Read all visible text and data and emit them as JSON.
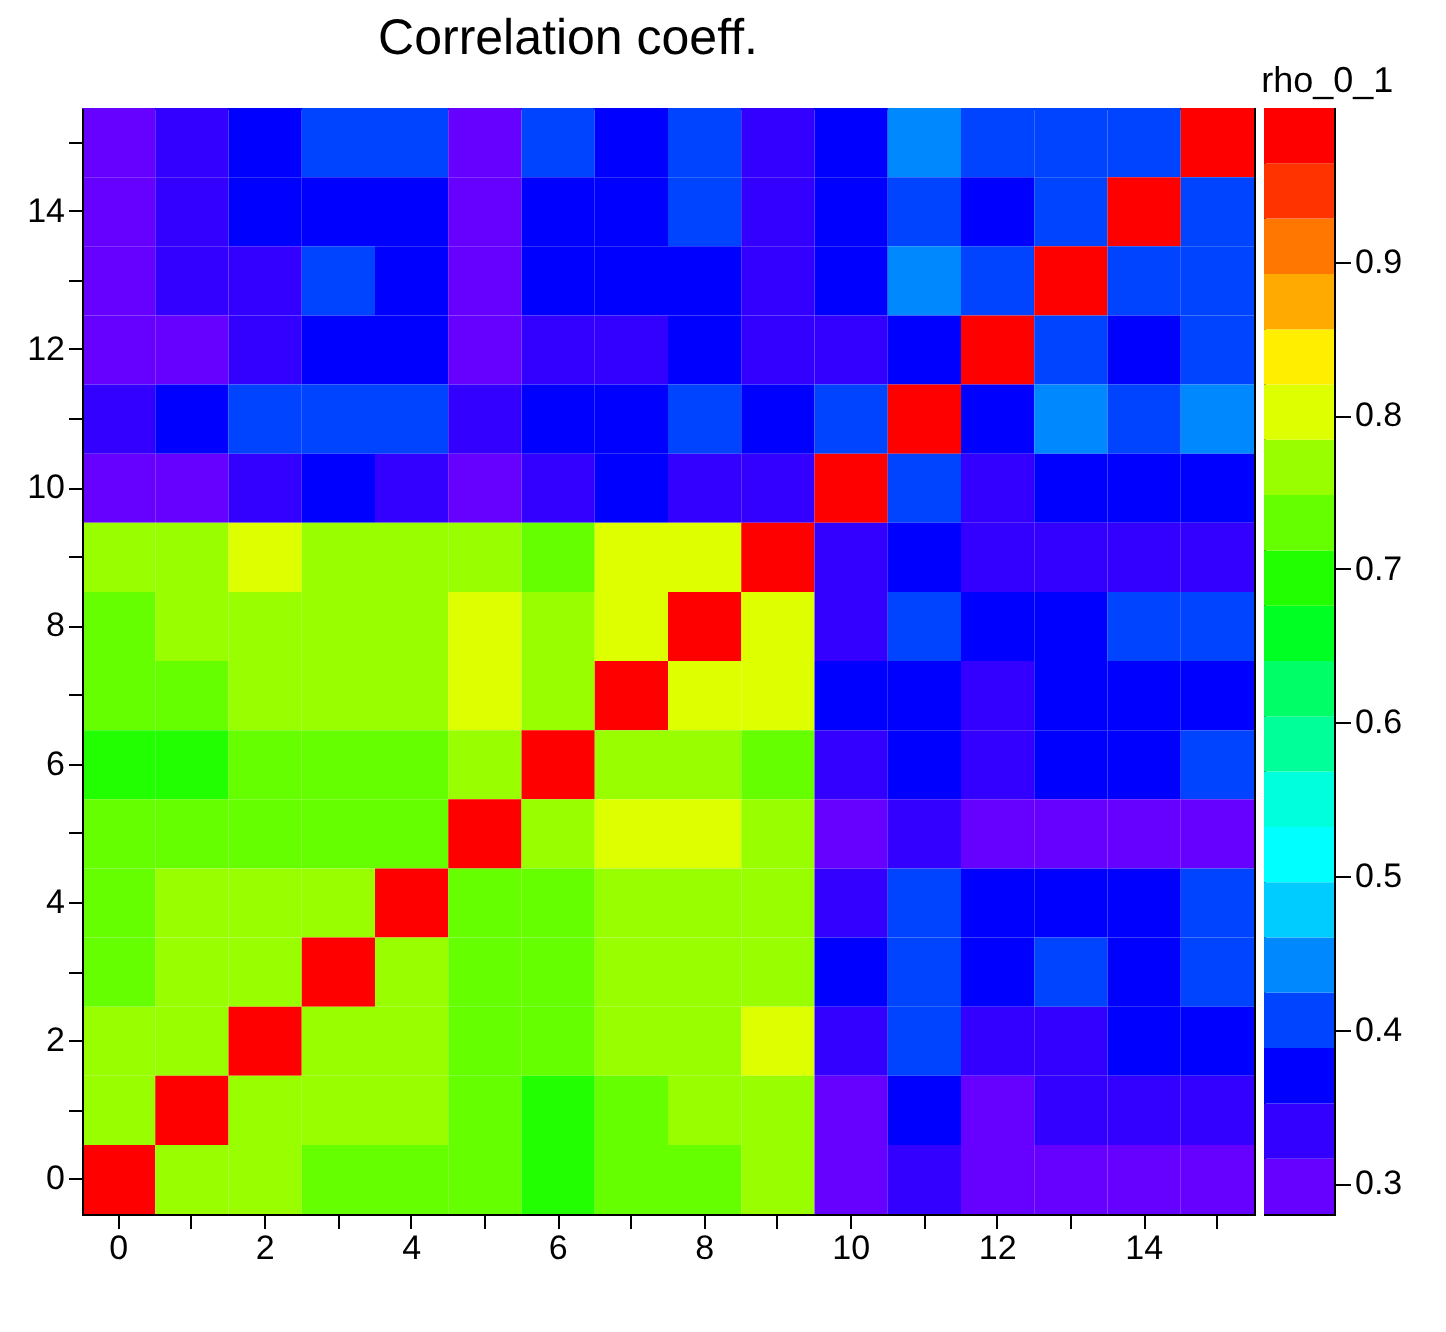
{
  "chart_data": {
    "type": "heatmap",
    "title": "Correlation coeff.",
    "clabel": "rho_0_1",
    "categories": [
      "0",
      null,
      "2",
      null,
      "4",
      null,
      "6",
      null,
      "8",
      null,
      "10",
      null,
      "12",
      null,
      "14",
      null
    ],
    "y_categories": [
      null,
      "14",
      null,
      "12",
      null,
      "10",
      null,
      "8",
      null,
      "6",
      null,
      "4",
      null,
      "2",
      null,
      "0"
    ],
    "clim": [
      0.28,
      1
    ],
    "cticks": [
      0.3,
      0.4,
      0.5,
      0.6,
      0.7,
      0.8,
      0.9
    ],
    "cells": [
      [
        0.3,
        0.33,
        0.37,
        0.4,
        0.4,
        0.3,
        0.4,
        0.37,
        0.4,
        0.33,
        0.37,
        0.44,
        0.4,
        0.4,
        0.4,
        1
      ],
      [
        0.3,
        0.33,
        0.37,
        0.37,
        0.37,
        0.3,
        0.37,
        0.37,
        0.4,
        0.33,
        0.37,
        0.4,
        0.37,
        0.4,
        1,
        0.4
      ],
      [
        0.3,
        0.33,
        0.33,
        0.4,
        0.37,
        0.3,
        0.37,
        0.37,
        0.37,
        0.33,
        0.37,
        0.44,
        0.4,
        1,
        0.4,
        0.4
      ],
      [
        0.3,
        0.3,
        0.33,
        0.37,
        0.37,
        0.3,
        0.33,
        0.33,
        0.37,
        0.33,
        0.33,
        0.37,
        1,
        0.4,
        0.37,
        0.4
      ],
      [
        0.33,
        0.37,
        0.4,
        0.4,
        0.4,
        0.33,
        0.37,
        0.37,
        0.4,
        0.37,
        0.4,
        1,
        0.37,
        0.44,
        0.4,
        0.44
      ],
      [
        0.3,
        0.3,
        0.33,
        0.37,
        0.33,
        0.3,
        0.33,
        0.37,
        0.33,
        0.33,
        1,
        0.4,
        0.33,
        0.37,
        0.37,
        0.37
      ],
      [
        0.77,
        0.77,
        0.8,
        0.77,
        0.77,
        0.77,
        0.73,
        0.8,
        0.8,
        1,
        0.33,
        0.37,
        0.33,
        0.33,
        0.33,
        0.33
      ],
      [
        0.73,
        0.77,
        0.77,
        0.77,
        0.77,
        0.8,
        0.77,
        0.8,
        1,
        0.8,
        0.33,
        0.4,
        0.37,
        0.37,
        0.4,
        0.4
      ],
      [
        0.73,
        0.73,
        0.77,
        0.77,
        0.77,
        0.8,
        0.77,
        1,
        0.8,
        0.8,
        0.37,
        0.37,
        0.33,
        0.37,
        0.37,
        0.37
      ],
      [
        0.7,
        0.7,
        0.73,
        0.73,
        0.73,
        0.77,
        1,
        0.77,
        0.77,
        0.73,
        0.33,
        0.37,
        0.33,
        0.37,
        0.37,
        0.4
      ],
      [
        0.73,
        0.73,
        0.73,
        0.73,
        0.73,
        1,
        0.77,
        0.8,
        0.8,
        0.77,
        0.3,
        0.33,
        0.3,
        0.3,
        0.3,
        0.3
      ],
      [
        0.73,
        0.77,
        0.77,
        0.77,
        1,
        0.73,
        0.73,
        0.77,
        0.77,
        0.77,
        0.33,
        0.4,
        0.37,
        0.37,
        0.37,
        0.4
      ],
      [
        0.73,
        0.77,
        0.77,
        1,
        0.77,
        0.73,
        0.73,
        0.77,
        0.77,
        0.77,
        0.37,
        0.4,
        0.37,
        0.4,
        0.37,
        0.4
      ],
      [
        0.77,
        0.77,
        1,
        0.77,
        0.77,
        0.73,
        0.73,
        0.77,
        0.77,
        0.8,
        0.33,
        0.4,
        0.33,
        0.33,
        0.37,
        0.37
      ],
      [
        0.77,
        1,
        0.77,
        0.77,
        0.77,
        0.73,
        0.7,
        0.73,
        0.77,
        0.77,
        0.3,
        0.37,
        0.3,
        0.33,
        0.33,
        0.33
      ],
      [
        1,
        0.77,
        0.77,
        0.73,
        0.73,
        0.73,
        0.7,
        0.73,
        0.73,
        0.77,
        0.3,
        0.33,
        0.3,
        0.3,
        0.3,
        0.3
      ]
    ]
  }
}
